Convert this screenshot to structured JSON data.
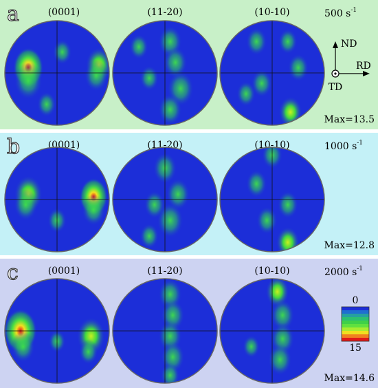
{
  "panels": [
    {
      "label": "a",
      "titles": [
        "(0001)",
        "(11-20)",
        "(10-10)"
      ],
      "rate": "500 s",
      "rate_exponent": "-1",
      "max": "Max=13.5",
      "axes": {
        "up": "ND",
        "right": "RD",
        "out": "TD"
      }
    },
    {
      "label": "b",
      "titles": [
        "(0001)",
        "(11-20)",
        "(10-10)"
      ],
      "rate": "1000 s",
      "rate_exponent": "-1",
      "max": "Max=12.8"
    },
    {
      "label": "c",
      "titles": [
        "(0001)",
        "(11-20)",
        "(10-10)"
      ],
      "rate": "2000 s",
      "rate_exponent": "-1",
      "max": "Max=14.6",
      "colorbar": {
        "min": "0",
        "max": "15"
      }
    }
  ]
}
